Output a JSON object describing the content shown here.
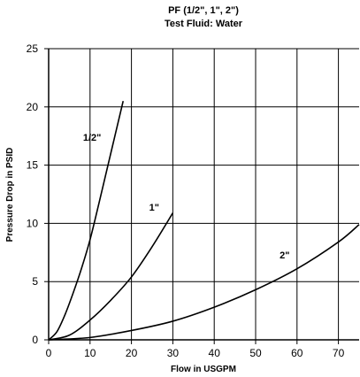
{
  "chart_data": {
    "type": "line",
    "title": "PF (1/2\", 1\", 2\")",
    "subtitle": "Test Fluid: Water",
    "xlabel": "Flow in USGPM",
    "ylabel": "Pressure Drop in PSID",
    "xlim": [
      0,
      75
    ],
    "ylim": [
      0,
      25
    ],
    "xticks": [
      0,
      10,
      20,
      30,
      40,
      50,
      60,
      70
    ],
    "yticks": [
      0,
      5,
      10,
      15,
      20,
      25
    ],
    "grid": true,
    "series": [
      {
        "name": "1/2\"",
        "x": [
          0,
          2,
          4,
          6,
          8,
          10,
          12,
          14,
          16,
          18
        ],
        "y": [
          0,
          0.7,
          2.2,
          4.1,
          6.2,
          8.6,
          11.5,
          14.5,
          17.5,
          20.5
        ]
      },
      {
        "name": "1\"",
        "x": [
          0,
          5,
          10,
          15,
          20,
          25,
          30
        ],
        "y": [
          0,
          0.4,
          1.7,
          3.4,
          5.4,
          8.0,
          10.9
        ]
      },
      {
        "name": "2\"",
        "x": [
          0,
          10,
          20,
          30,
          40,
          50,
          60,
          70,
          75
        ],
        "y": [
          0,
          0.2,
          0.8,
          1.6,
          2.8,
          4.3,
          6.1,
          8.4,
          9.9
        ]
      }
    ]
  }
}
